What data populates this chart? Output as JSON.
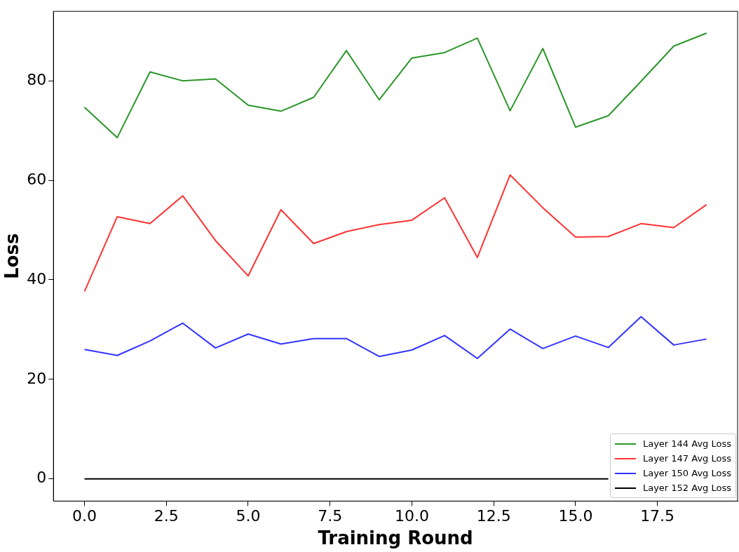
{
  "chart_data": {
    "type": "line",
    "xlabel": "Training Round",
    "ylabel": "Loss",
    "x": [
      0,
      1,
      2,
      3,
      4,
      5,
      6,
      7,
      8,
      9,
      10,
      11,
      12,
      13,
      14,
      15,
      16,
      17,
      18,
      19
    ],
    "series": [
      {
        "name": "Layer 144 Avg Loss",
        "color": "#2a962a",
        "values": [
          74.7,
          68.6,
          81.8,
          80,
          80.4,
          75.1,
          73.9,
          76.7,
          86.1,
          76.2,
          84.6,
          85.7,
          88.6,
          74,
          86.5,
          70.7,
          73,
          79.9,
          87,
          89.6
        ]
      },
      {
        "name": "Layer 147 Avg Loss",
        "color": "#ff3333",
        "values": [
          37.7,
          52.7,
          51.3,
          56.9,
          47.9,
          40.8,
          54.1,
          47.3,
          49.7,
          51.1,
          52,
          56.5,
          44.5,
          61.1,
          54.5,
          48.6,
          48.7,
          51.3,
          50.5,
          55.1
        ]
      },
      {
        "name": "Layer 150 Avg Loss",
        "color": "#3333ff",
        "values": [
          26,
          24.8,
          27.7,
          31.3,
          26.3,
          29.1,
          27.1,
          28.2,
          28.2,
          24.6,
          25.9,
          28.8,
          24.2,
          30.1,
          26.2,
          28.7,
          26.4,
          32.6,
          26.9,
          28.1
        ]
      },
      {
        "name": "Layer 152 Avg Loss",
        "color": "#000000",
        "values": [
          0,
          0,
          0,
          0,
          0,
          0,
          0,
          0,
          0,
          0,
          0,
          0,
          0,
          0,
          0,
          0,
          0,
          null,
          null,
          null
        ]
      }
    ],
    "xlim": [
      -0.95,
      19.95
    ],
    "ylim": [
      -4.48,
      93.98
    ],
    "xticks": [
      {
        "value": 0,
        "label": "0.0"
      },
      {
        "value": 2.5,
        "label": "2.5"
      },
      {
        "value": 5,
        "label": "5.0"
      },
      {
        "value": 7.5,
        "label": "7.5"
      },
      {
        "value": 10,
        "label": "10.0"
      },
      {
        "value": 12.5,
        "label": "12.5"
      },
      {
        "value": 15,
        "label": "15.0"
      },
      {
        "value": 17.5,
        "label": "17.5"
      }
    ],
    "yticks": [
      0,
      20,
      40,
      60,
      80
    ],
    "grid": false,
    "legend": "bottom right",
    "marker": "none",
    "line_style": "solid"
  }
}
